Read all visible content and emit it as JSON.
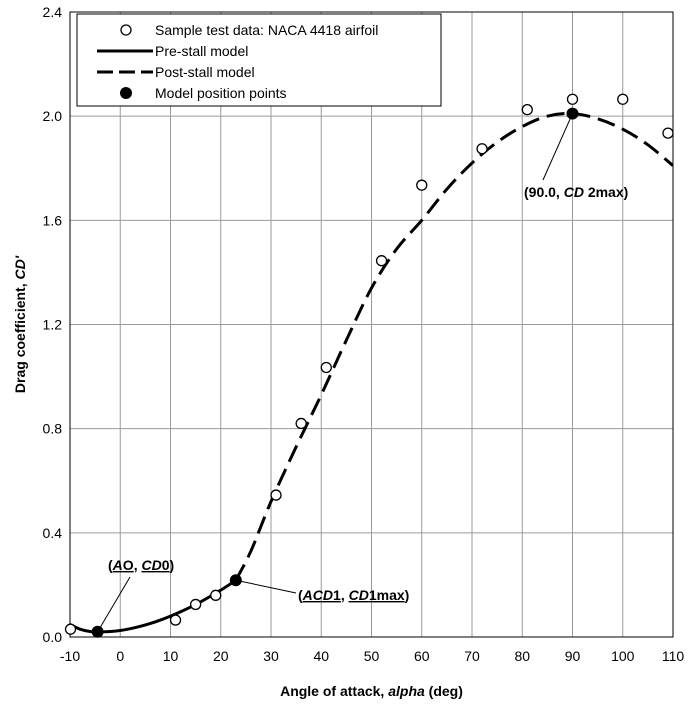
{
  "chart_data": {
    "type": "scatter",
    "title": "",
    "xlabel": {
      "prefix": "Angle of attack, ",
      "var": "alpha",
      "suffix": " (deg)"
    },
    "ylabel": {
      "prefix": "Drag coefficient, ",
      "var": "CD'"
    },
    "xlim": [
      -10,
      110
    ],
    "ylim": [
      0,
      2.4
    ],
    "xticks": [
      -10,
      0,
      10,
      20,
      30,
      40,
      50,
      60,
      70,
      80,
      90,
      100,
      110
    ],
    "yticks": [
      0,
      0.4,
      0.8,
      1.2,
      1.6,
      2.0,
      2.4
    ],
    "ytick_labels": [
      "0.0",
      "0.4",
      "0.8",
      "1.2",
      "1.6",
      "2.0",
      "2.4"
    ],
    "grid": true,
    "legend_position": "top-left",
    "legend": [
      {
        "label": "Sample test data: NACA 4418 airfoil",
        "marker": "open-circle"
      },
      {
        "label": "Pre-stall model",
        "style": "solid"
      },
      {
        "label": "Post-stall model",
        "style": "dashed"
      },
      {
        "label": "Model position points",
        "marker": "filled-circle"
      }
    ],
    "series": [
      {
        "name": "Sample test data: NACA 4418 airfoil",
        "kind": "markers-open",
        "x": [
          -9.9,
          11,
          15,
          19,
          31,
          36,
          41,
          52,
          60,
          72,
          81,
          90,
          100,
          109
        ],
        "y": [
          0.03,
          0.065,
          0.125,
          0.16,
          0.545,
          0.82,
          1.035,
          1.445,
          1.735,
          1.875,
          2.025,
          2.065,
          2.065,
          1.935
        ]
      },
      {
        "name": "Pre-stall model",
        "kind": "line-solid",
        "x": [
          -10,
          -8,
          -6,
          -4,
          -2,
          0,
          2,
          4,
          6,
          8,
          10,
          12,
          14,
          16,
          18,
          20,
          22,
          23
        ],
        "y": [
          0.048,
          0.03,
          0.021,
          0.02,
          0.021,
          0.025,
          0.032,
          0.041,
          0.052,
          0.065,
          0.08,
          0.097,
          0.115,
          0.135,
          0.157,
          0.18,
          0.205,
          0.218
        ]
      },
      {
        "name": "Post-stall model",
        "kind": "line-dashed",
        "x": [
          23,
          26,
          30,
          35,
          40,
          45,
          50,
          55,
          60,
          65,
          70,
          75,
          80,
          85,
          90,
          95,
          100,
          105,
          110
        ],
        "y": [
          0.218,
          0.33,
          0.52,
          0.73,
          0.93,
          1.14,
          1.34,
          1.49,
          1.6,
          1.72,
          1.82,
          1.9,
          1.96,
          2.0,
          2.01,
          1.99,
          1.95,
          1.89,
          1.81
        ]
      },
      {
        "name": "Model position points",
        "kind": "markers-filled",
        "x": [
          -4.5,
          23,
          90
        ],
        "y": [
          0.02,
          0.218,
          2.01
        ]
      }
    ],
    "annotations": [
      {
        "id": "a0",
        "point_index": 0,
        "parts": [
          {
            "t": "(",
            "i": false,
            "u": false
          },
          {
            "t": "A",
            "i": true,
            "u": true
          },
          {
            "t": "O",
            "i": false,
            "u": true
          },
          {
            "t": ",  ",
            "i": false,
            "u": false
          },
          {
            "t": "CD",
            "i": true,
            "u": true
          },
          {
            "t": "0",
            "i": false,
            "u": true
          },
          {
            "t": ")",
            "i": false,
            "u": false
          }
        ]
      },
      {
        "id": "acd1",
        "point_index": 1,
        "parts": [
          {
            "t": "(",
            "i": false,
            "u": false
          },
          {
            "t": "ACD",
            "i": true,
            "u": true
          },
          {
            "t": "1",
            "i": false,
            "u": true
          },
          {
            "t": ",  ",
            "i": false,
            "u": false
          },
          {
            "t": "CD",
            "i": true,
            "u": true
          },
          {
            "t": "1max",
            "i": false,
            "u": true
          },
          {
            "t": ")",
            "i": false,
            "u": false
          }
        ]
      },
      {
        "id": "cd2max",
        "point_index": 2,
        "parts": [
          {
            "t": "(90.0,  ",
            "i": false,
            "u": false
          },
          {
            "t": "CD",
            "i": true,
            "u": false
          },
          {
            "t": " 2max)",
            "i": false,
            "u": false
          }
        ]
      }
    ]
  }
}
